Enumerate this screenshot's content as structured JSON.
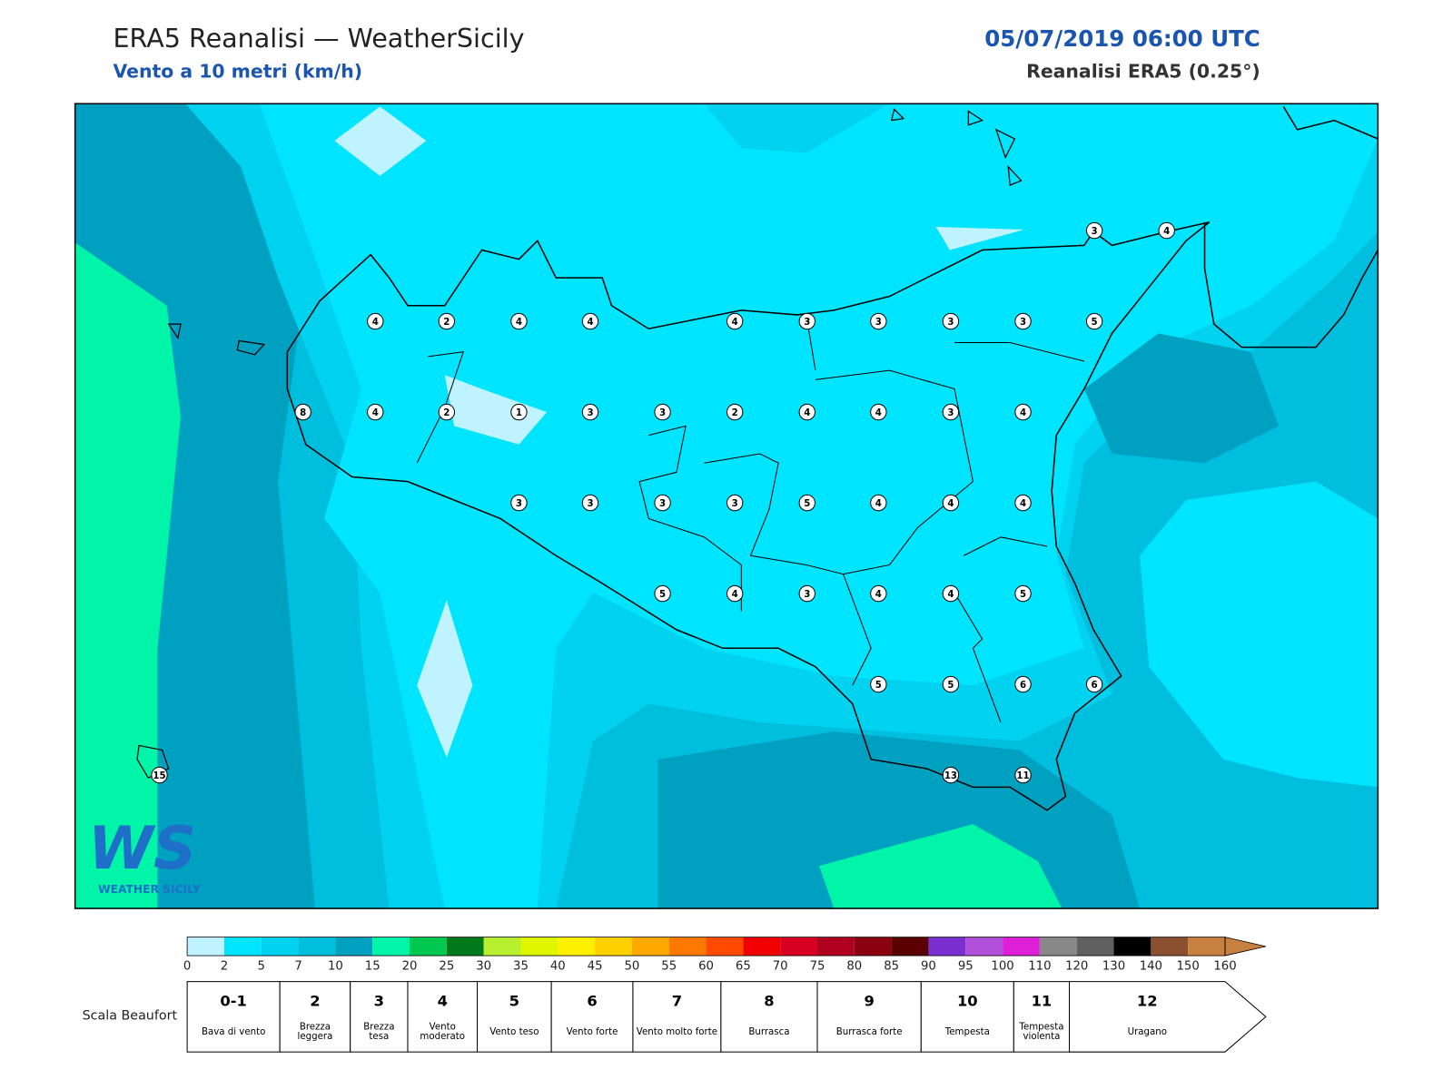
{
  "header": {
    "title": "ERA5 Reanalisi — WeatherSicily",
    "subtitle": "Vento a 10 metri (km/h)",
    "datetime": "05/07/2019 06:00 UTC",
    "source": "Reanalisi ERA5 (0.25°)"
  },
  "map": {
    "stations": [
      3,
      4,
      4,
      2,
      4,
      4,
      4,
      3,
      3,
      3,
      3,
      5,
      8,
      4,
      2,
      1,
      3,
      3,
      2,
      4,
      4,
      3,
      4,
      3,
      3,
      3,
      3,
      5,
      4,
      4,
      4,
      5,
      4,
      3,
      4,
      4,
      5,
      5,
      5,
      6,
      6,
      15,
      13,
      11
    ]
  },
  "logo": {
    "mark": "WS",
    "text": "WEATHER SICILY"
  },
  "colorbar": {
    "ticks": [
      0,
      2,
      5,
      7,
      10,
      15,
      20,
      25,
      30,
      35,
      40,
      45,
      50,
      55,
      60,
      65,
      70,
      75,
      80,
      85,
      90,
      95,
      100,
      110,
      120,
      130,
      140,
      150,
      160
    ],
    "colors": [
      "#bff3ff",
      "#00e5ff",
      "#00d2f0",
      "#00bede",
      "#00a0c0",
      "#00f5a8",
      "#00c850",
      "#007a1a",
      "#b8f030",
      "#e0f500",
      "#fff000",
      "#ffd000",
      "#ffa800",
      "#ff7800",
      "#ff4a00",
      "#f00000",
      "#d80020",
      "#b00020",
      "#8a0010",
      "#5a0000",
      "#7a30d0",
      "#b050d8",
      "#e020d8",
      "#888888",
      "#606060",
      "#000000",
      "#8a5030",
      "#c88040"
    ]
  },
  "beaufort": {
    "label": "Scala Beaufort",
    "levels": [
      {
        "force": "0-1",
        "name": "Bava di vento"
      },
      {
        "force": 2,
        "name": "Brezza leggera"
      },
      {
        "force": 3,
        "name": "Brezza tesa"
      },
      {
        "force": 4,
        "name": "Vento moderato"
      },
      {
        "force": 5,
        "name": "Vento teso"
      },
      {
        "force": 6,
        "name": "Vento forte"
      },
      {
        "force": 7,
        "name": "Vento molto forte"
      },
      {
        "force": 8,
        "name": "Burrasca"
      },
      {
        "force": 9,
        "name": "Burrasca forte"
      },
      {
        "force": 10,
        "name": "Tempesta"
      },
      {
        "force": 11,
        "name": "Tempesta violenta"
      },
      {
        "force": 12,
        "name": "Uragano"
      }
    ]
  }
}
